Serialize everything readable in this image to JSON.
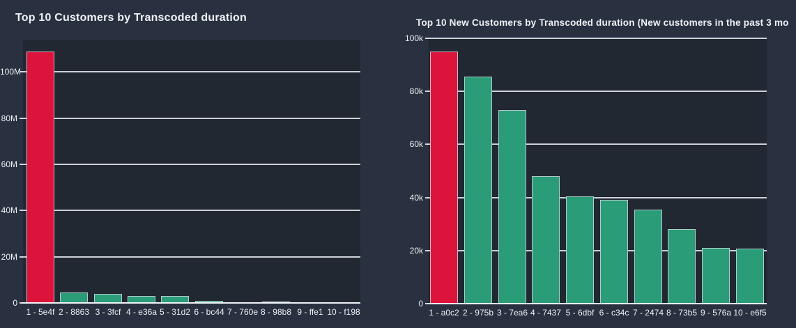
{
  "colors": {
    "page_background": "#293140",
    "plot_background": "#212832",
    "highlight_bar": "#dc143c",
    "bar": "#2a9c78",
    "bar_border": "#cbd3db",
    "gridline": "#e6e9ee",
    "axis_line": "#f2f4f7",
    "text": "#eef0f4"
  },
  "chart_data": [
    {
      "type": "bar",
      "title": "Top 10 Customers by Transcoded duration",
      "categories": [
        "1 - 5e4f",
        "2 - 8863",
        "3 - 3fcf",
        "4 - e36a",
        "5 - 31d2",
        "6 - bc44",
        "7 - 760e",
        "8 - 98b8",
        "9 - ffe1",
        "10 - f198"
      ],
      "values": [
        109000000,
        4400000,
        3900000,
        2900000,
        3000000,
        850000,
        450000,
        650000,
        200000,
        350000
      ],
      "highlight_index": 0,
      "xlabel": "",
      "ylabel": "",
      "ylim": [
        0,
        114000000
      ],
      "ytick_values": [
        0,
        20000000,
        40000000,
        60000000,
        80000000,
        100000000
      ],
      "ytick_labels": [
        "0",
        "20M",
        "40M",
        "60M",
        "80M",
        "100M"
      ],
      "grid": true,
      "legend": false
    },
    {
      "type": "bar",
      "title": "Top 10 New Customers by Transcoded duration (New customers in the past 3 mo",
      "categories": [
        "1 - a0c2",
        "2 - 975b",
        "3 - 7ea6",
        "4 - 7437",
        "5 - 6dbf",
        "6 - c34c",
        "7 - 2474",
        "8 - 73b5",
        "9 - 576a",
        "10 - e6f5"
      ],
      "values": [
        95000,
        85500,
        73000,
        48000,
        40500,
        39000,
        35500,
        28000,
        21000,
        20700
      ],
      "highlight_index": 0,
      "xlabel": "",
      "ylabel": "",
      "ylim": [
        0,
        100000
      ],
      "ytick_values": [
        0,
        20000,
        40000,
        60000,
        80000,
        100000
      ],
      "ytick_labels": [
        "0",
        "20k",
        "40k",
        "60k",
        "80k",
        "100k"
      ],
      "grid": true,
      "legend": false
    }
  ]
}
